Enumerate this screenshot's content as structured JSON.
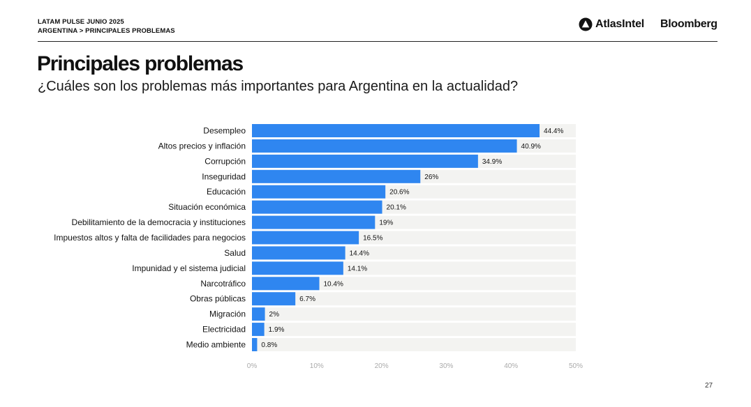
{
  "header": {
    "line1": "LATAM PULSE JUNIO 2025",
    "line2": "ARGENTINA > PRINCIPALES PROBLEMAS",
    "brand_atlas": "AtlasIntel",
    "brand_bloomberg": "Bloomberg"
  },
  "title": "Principales problemas",
  "subtitle": "¿Cuáles son los problemas más importantes para Argentina en la actualidad?",
  "page_number": "27",
  "colors": {
    "bar": "#2f86f0",
    "track": "#f3f3f1",
    "axis_text": "#aaaaaa"
  },
  "chart_data": {
    "type": "bar",
    "orientation": "horizontal",
    "categories": [
      "Desempleo",
      "Altos precios y inflación",
      "Corrupción",
      "Inseguridad",
      "Educación",
      "Situación económica",
      "Debilitamiento de la democracia y instituciones",
      "Impuestos altos y falta de facilidades para negocios",
      "Salud",
      "Impunidad y el sistema judicial",
      "Narcotráfico",
      "Obras públicas",
      "Migración",
      "Electricidad",
      "Medio ambiente"
    ],
    "values": [
      44.4,
      40.9,
      34.9,
      26,
      20.6,
      20.1,
      19,
      16.5,
      14.4,
      14.1,
      10.4,
      6.7,
      2,
      1.9,
      0.8
    ],
    "value_labels": [
      "44.4%",
      "40.9%",
      "34.9%",
      "26%",
      "20.6%",
      "20.1%",
      "19%",
      "16.5%",
      "14.4%",
      "14.1%",
      "10.4%",
      "6.7%",
      "2%",
      "1.9%",
      "0.8%"
    ],
    "xlim": [
      0,
      50
    ],
    "xticks": [
      0,
      10,
      20,
      30,
      40,
      50
    ],
    "xtick_labels": [
      "0%",
      "10%",
      "20%",
      "30%",
      "40%",
      "50%"
    ],
    "grid": false
  }
}
